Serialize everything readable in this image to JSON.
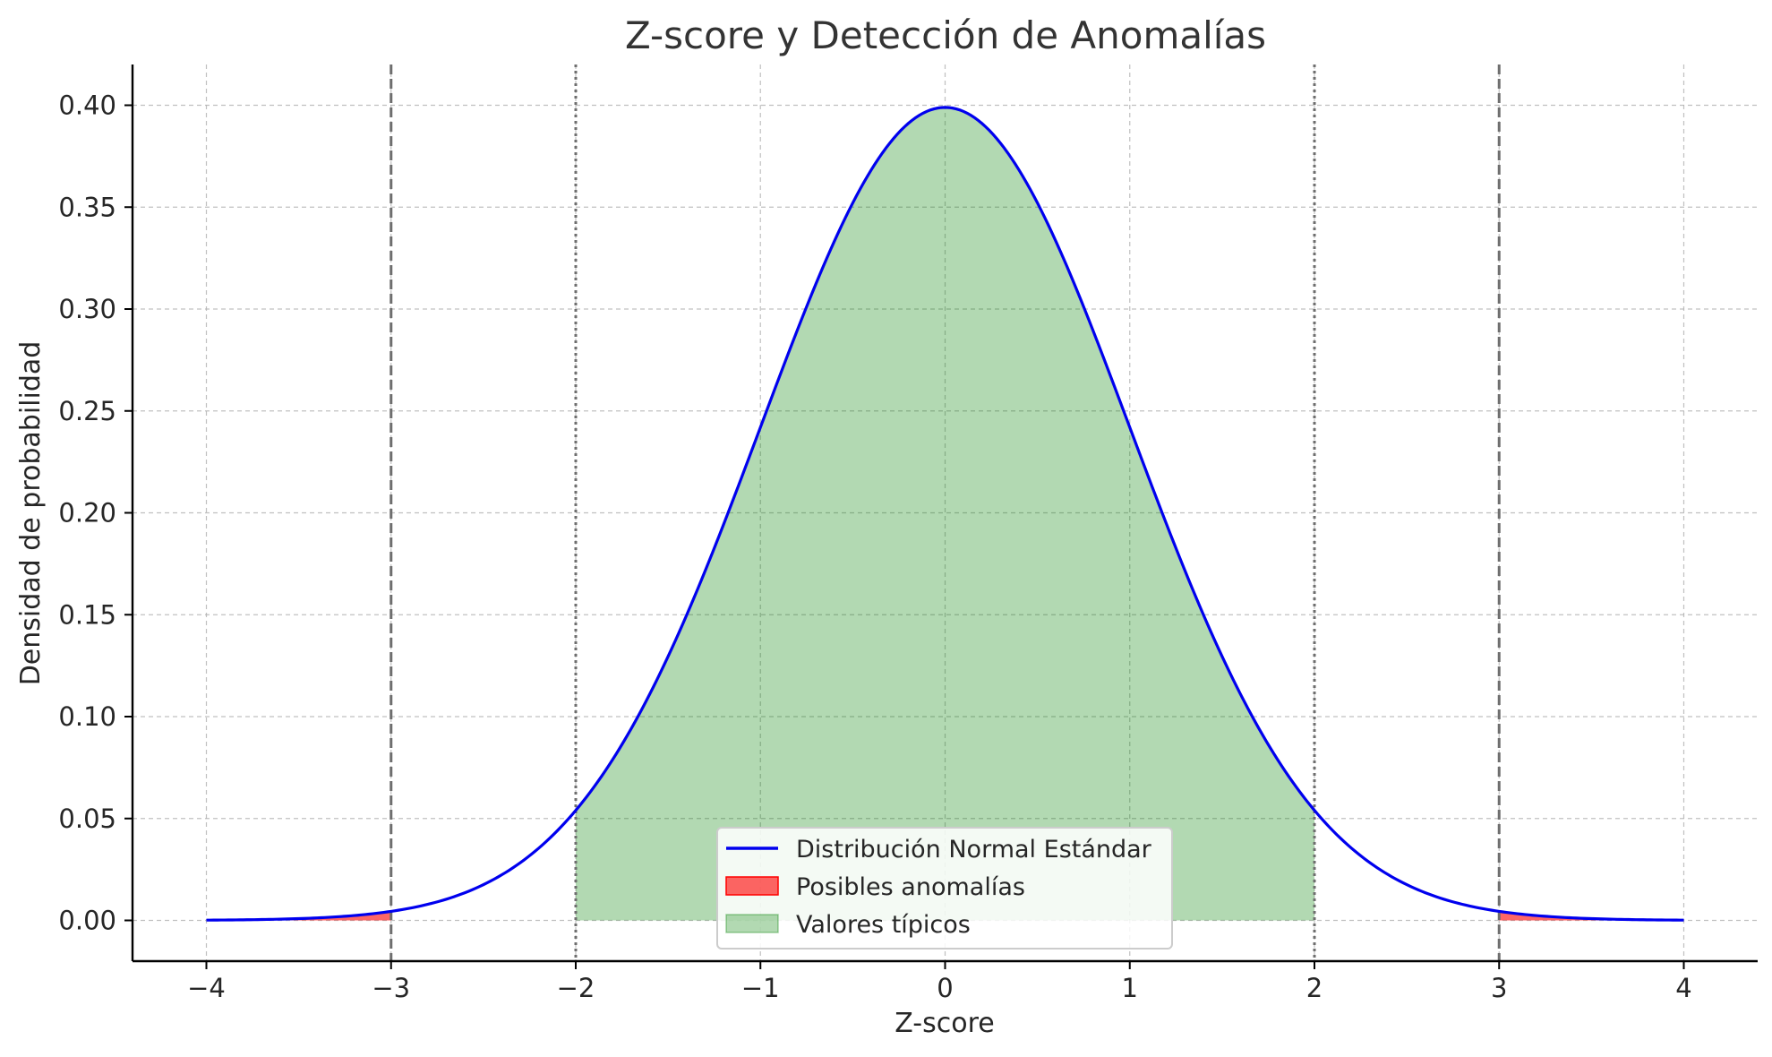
{
  "chart_data": {
    "type": "area",
    "title": "Z-score y Detección de Anomalías",
    "xlabel": "Z-score",
    "ylabel": "Densidad de probabilidad",
    "xlim": [
      -4.4,
      4.4
    ],
    "ylim": [
      -0.02,
      0.42
    ],
    "x_ticks": [
      -4,
      -3,
      -2,
      -1,
      0,
      1,
      2,
      3,
      4
    ],
    "x_tick_labels": [
      "−4",
      "−3",
      "−2",
      "−1",
      "0",
      "1",
      "2",
      "3",
      "4"
    ],
    "y_ticks": [
      0,
      0.05,
      0.1,
      0.15,
      0.2,
      0.25,
      0.3,
      0.35,
      0.4
    ],
    "y_tick_labels": [
      "0.00",
      "0.05",
      "0.10",
      "0.15",
      "0.20",
      "0.25",
      "0.30",
      "0.35",
      "0.40"
    ],
    "grid": true,
    "legend_position": "bottom-center",
    "series": [
      {
        "name": "Distribución Normal Estándar",
        "kind": "line",
        "color": "#0000ee",
        "x": [
          -4,
          -3.5,
          -3,
          -2.5,
          -2,
          -1.5,
          -1,
          -0.5,
          0,
          0.5,
          1,
          1.5,
          2,
          2.5,
          3,
          3.5,
          4
        ],
        "y": [
          0.0001,
          0.0009,
          0.0044,
          0.0175,
          0.054,
          0.1295,
          0.242,
          0.3521,
          0.3989,
          0.3521,
          0.242,
          0.1295,
          0.054,
          0.0175,
          0.0044,
          0.0009,
          0.0001
        ]
      },
      {
        "name": "Posibles anomalías",
        "kind": "fill",
        "color": "#ff0000",
        "ranges": [
          [
            -4,
            -3
          ],
          [
            3,
            4
          ]
        ]
      },
      {
        "name": "Valores típicos",
        "kind": "fill",
        "color": "#008000",
        "ranges": [
          [
            -2,
            2
          ]
        ]
      }
    ],
    "reference_lines": [
      {
        "x": -3,
        "style": "dashed"
      },
      {
        "x": 3,
        "style": "dashed"
      },
      {
        "x": -2,
        "style": "dotted"
      },
      {
        "x": 2,
        "style": "dotted"
      }
    ]
  }
}
